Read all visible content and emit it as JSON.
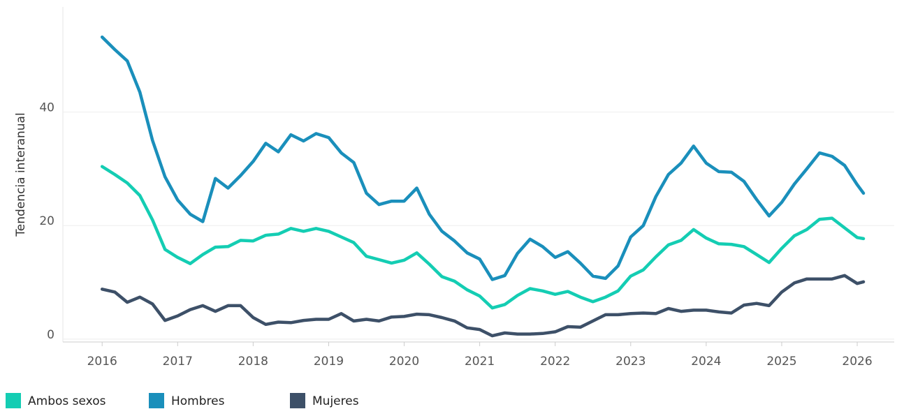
{
  "chart_data": {
    "type": "line",
    "y_label": "Tendencia interanual",
    "x": [
      2016,
      2016.167,
      2016.333,
      2016.5,
      2016.667,
      2016.833,
      2017,
      2017.167,
      2017.333,
      2017.5,
      2017.667,
      2017.833,
      2018,
      2018.167,
      2018.333,
      2018.5,
      2018.667,
      2018.833,
      2019,
      2019.167,
      2019.333,
      2019.5,
      2019.667,
      2019.833,
      2020,
      2020.167,
      2020.333,
      2020.5,
      2020.667,
      2020.833,
      2021,
      2021.167,
      2021.333,
      2021.5,
      2021.667,
      2021.833,
      2022,
      2022.167,
      2022.333,
      2022.5,
      2022.667,
      2022.833,
      2023,
      2023.167,
      2023.333,
      2023.5,
      2023.667,
      2023.833,
      2024,
      2024.167,
      2024.333,
      2024.5,
      2024.667,
      2024.833,
      2025,
      2025.167,
      2025.333,
      2025.5,
      2025.667,
      2025.833,
      2026,
      2026.083
    ],
    "series": [
      {
        "name": "Ambos sexos",
        "color": "#14cdb3",
        "values": [
          30.4,
          29,
          27.5,
          25.3,
          21,
          15.8,
          14.4,
          13.3,
          14.9,
          16.2,
          16.3,
          17.4,
          17.3,
          18.3,
          18.5,
          19.5,
          19,
          19.5,
          19,
          18,
          17,
          14.6,
          14,
          13.4,
          13.9,
          15.2,
          13.2,
          11,
          10.2,
          8.7,
          7.6,
          5.5,
          6.1,
          7.7,
          8.9,
          8.5,
          7.9,
          8.4,
          7.4,
          6.6,
          7.4,
          8.5,
          11.1,
          12.2,
          14.5,
          16.6,
          17.4,
          19.3,
          17.8,
          16.8,
          16.7,
          16.3,
          14.9,
          13.5,
          16,
          18.2,
          19.3,
          21.1,
          21.3,
          19.6,
          17.9,
          17.7
        ]
      },
      {
        "name": "Hombres",
        "color": "#1a8fbb",
        "values": [
          53.2,
          51,
          49,
          43.5,
          35,
          28.6,
          24.5,
          22,
          20.7,
          28.3,
          26.6,
          28.8,
          31.3,
          34.5,
          33,
          36,
          34.9,
          36.2,
          35.5,
          32.8,
          31.1,
          25.7,
          23.7,
          24.3,
          24.3,
          26.6,
          22,
          19,
          17.3,
          15.2,
          14.1,
          10.5,
          11.2,
          15.1,
          17.6,
          16.3,
          14.4,
          15.4,
          13.4,
          11.1,
          10.7,
          12.9,
          18,
          20,
          25.1,
          29,
          31,
          34,
          31,
          29.5,
          29.4,
          27.8,
          24.6,
          21.7,
          24.1,
          27.3,
          30,
          32.8,
          32.2,
          30.6,
          27.2,
          25.7
        ]
      },
      {
        "name": "Mujeres",
        "color": "#3d5068",
        "values": [
          8.8,
          8.3,
          6.5,
          7.4,
          6.2,
          3.3,
          4.1,
          5.2,
          5.9,
          4.9,
          5.9,
          5.9,
          3.8,
          2.6,
          3,
          2.9,
          3.3,
          3.5,
          3.5,
          4.5,
          3.2,
          3.5,
          3.2,
          3.9,
          4,
          4.4,
          4.3,
          3.8,
          3.2,
          2,
          1.7,
          0.6,
          1.1,
          0.9,
          0.9,
          1,
          1.3,
          2.2,
          2.1,
          3.2,
          4.3,
          4.3,
          4.5,
          4.6,
          4.5,
          5.4,
          4.9,
          5.1,
          5.1,
          4.8,
          4.6,
          6,
          6.3,
          5.9,
          8.3,
          9.9,
          10.6,
          10.6,
          10.6,
          11.2,
          9.8,
          10.1
        ]
      }
    ],
    "xlim": [
      2015.48,
      2026.49
    ],
    "xticks": [
      2016,
      2017,
      2018,
      2019,
      2020,
      2021,
      2022,
      2023,
      2024,
      2025,
      2026
    ],
    "ylim": [
      -0.5,
      58.5
    ],
    "yticks": [
      0,
      20,
      40
    ],
    "grid": true,
    "legend": "bottom"
  }
}
